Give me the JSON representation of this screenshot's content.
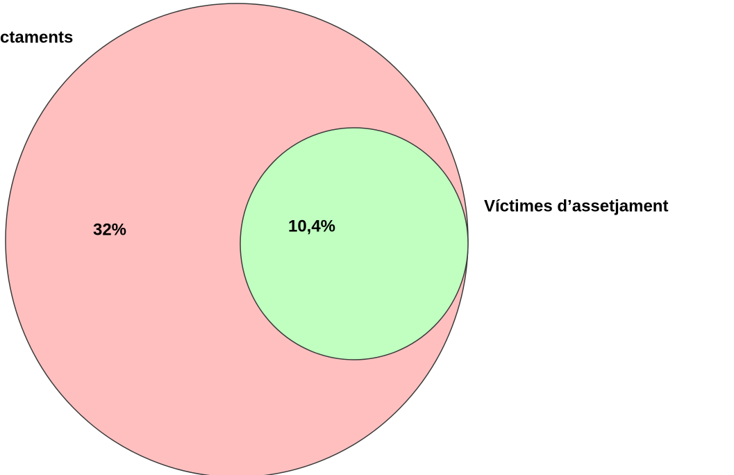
{
  "sets": [
    {
      "label": "ctaments",
      "value_label": "32%"
    },
    {
      "label": "Víctimes d’assetjament",
      "value_label": "10,4%"
    }
  ]
}
